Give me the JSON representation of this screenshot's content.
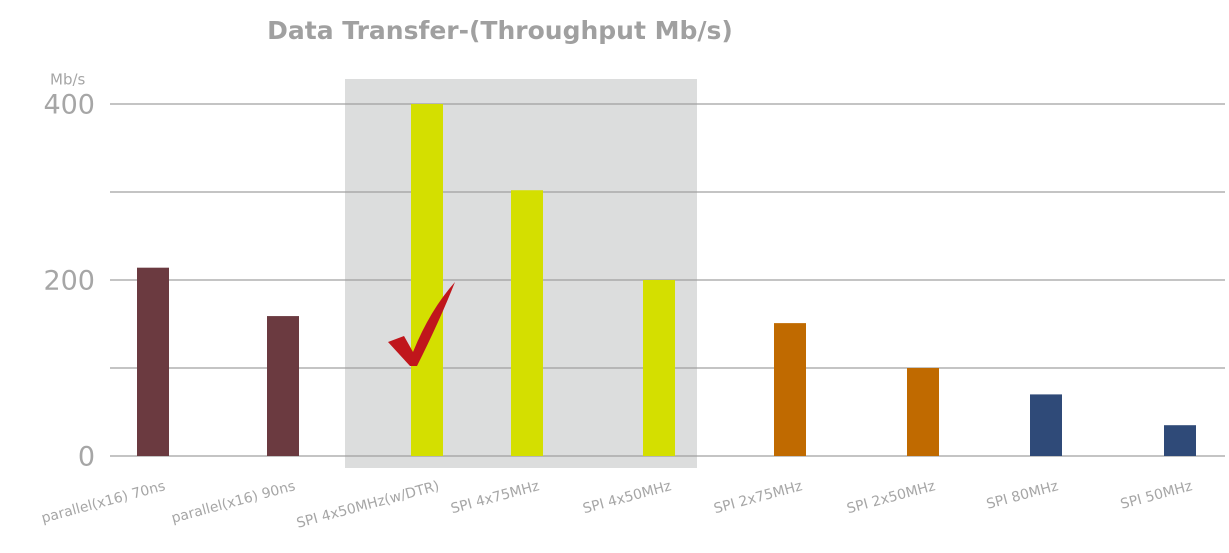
{
  "chart_data": {
    "type": "bar",
    "title": "Data Transfer-(Throughput Mb/s)",
    "y_unit": "Mb/s",
    "categories": [
      "parallel(x16) 70ns",
      "parallel(x16) 90ns",
      "SPI 4x50MHz(w/DTR)",
      "SPI 4x75MHz",
      "SPI 4x50MHz",
      "SPI 2x75MHz",
      "SPI 2x50MHz",
      "SPI 80MHz",
      "SPI 50MHz"
    ],
    "values": [
      214,
      159,
      400,
      302,
      200,
      151,
      100,
      70,
      35
    ],
    "colors": [
      "#6b3a40",
      "#6b3a40",
      "#d4df00",
      "#d4df00",
      "#d4df00",
      "#c06a00",
      "#c06a00",
      "#2f4a78",
      "#2f4a78"
    ],
    "ylim": [
      0,
      400
    ],
    "yticks": [
      0,
      200,
      400
    ],
    "minor_yticks": [
      100,
      300
    ],
    "grid": true
  }
}
